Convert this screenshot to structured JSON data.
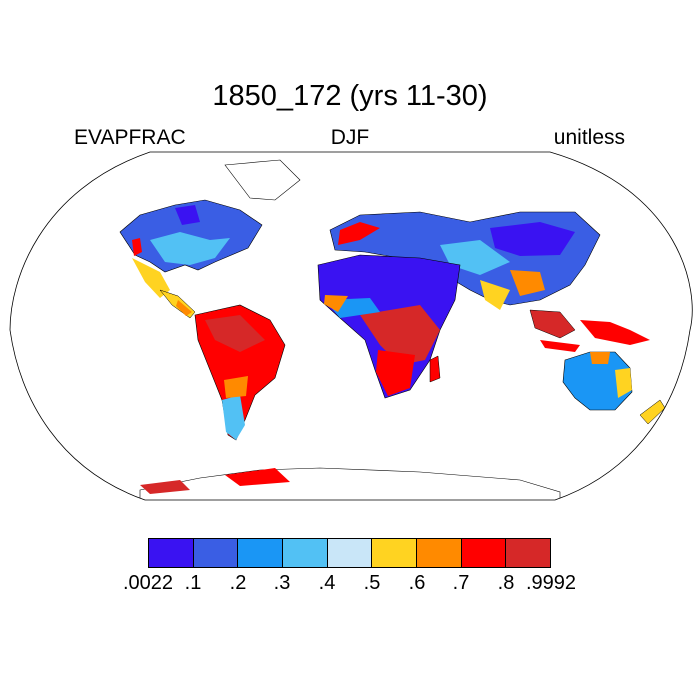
{
  "title": "1850_172 (yrs 11-30)",
  "labels": {
    "left": "EVAPFRAC",
    "center": "DJF",
    "right": "unitless"
  },
  "colorbar": {
    "colors": [
      "#3a12f2",
      "#3a5ee4",
      "#1a96f5",
      "#52c1f4",
      "#c9e6f8",
      "#ffd321",
      "#ff8a00",
      "#ff0000",
      "#d62828"
    ],
    "ticks": [
      ".0022",
      ".1",
      ".2",
      ".3",
      ".4",
      ".5",
      ".6",
      ".7",
      ".8",
      ".9992"
    ]
  }
}
